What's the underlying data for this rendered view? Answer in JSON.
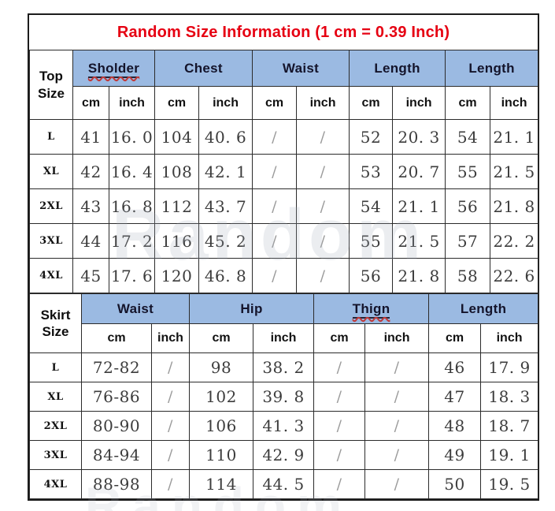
{
  "title": "Random Size Information (1 cm = 0.39 Inch)",
  "watermark": "Random",
  "units": {
    "cm": "cm",
    "inch": "inch"
  },
  "colors": {
    "title_red": "#e60012",
    "header_blue": "#9bbae2",
    "border_black": "#1c1c1c",
    "squiggle_red": "#c03a3a"
  },
  "top_table": {
    "corner_line1": "Top",
    "corner_line2": "Size",
    "groups": [
      {
        "label": "Sholder",
        "misspelled": true
      },
      {
        "label": "Chest",
        "misspelled": false
      },
      {
        "label": "Waist",
        "misspelled": false
      },
      {
        "label": "Length",
        "misspelled": false
      },
      {
        "label": "Length",
        "misspelled": false
      }
    ],
    "rows": [
      {
        "size": "L",
        "cells": [
          "41",
          "16. 0",
          "104",
          "40. 6",
          "/",
          "/",
          "52",
          "20. 3",
          "54",
          "21. 1"
        ]
      },
      {
        "size": "XL",
        "cells": [
          "42",
          "16. 4",
          "108",
          "42. 1",
          "/",
          "/",
          "53",
          "20. 7",
          "55",
          "21. 5"
        ]
      },
      {
        "size": "2XL",
        "cells": [
          "43",
          "16. 8",
          "112",
          "43. 7",
          "/",
          "/",
          "54",
          "21. 1",
          "56",
          "21. 8"
        ]
      },
      {
        "size": "3XL",
        "cells": [
          "44",
          "17. 2",
          "116",
          "45. 2",
          "/",
          "/",
          "55",
          "21. 5",
          "57",
          "22. 2"
        ]
      },
      {
        "size": "4XL",
        "cells": [
          "45",
          "17. 6",
          "120",
          "46. 8",
          "/",
          "/",
          "56",
          "21. 8",
          "58",
          "22. 6"
        ]
      }
    ]
  },
  "skirt_table": {
    "corner_line1": "Skirt",
    "corner_line2": "Size",
    "groups": [
      {
        "label": "Waist",
        "misspelled": false
      },
      {
        "label": "Hip",
        "misspelled": false
      },
      {
        "label": "Thign",
        "misspelled": true
      },
      {
        "label": "Length",
        "misspelled": false
      }
    ],
    "rows": [
      {
        "size": "L",
        "cells": [
          "72-82",
          "/",
          "98",
          "38. 2",
          "/",
          "/",
          "46",
          "17. 9"
        ]
      },
      {
        "size": "XL",
        "cells": [
          "76-86",
          "/",
          "102",
          "39. 8",
          "/",
          "/",
          "47",
          "18. 3"
        ]
      },
      {
        "size": "2XL",
        "cells": [
          "80-90",
          "/",
          "106",
          "41. 3",
          "/",
          "/",
          "48",
          "18. 7"
        ]
      },
      {
        "size": "3XL",
        "cells": [
          "84-94",
          "/",
          "110",
          "42. 9",
          "/",
          "/",
          "49",
          "19. 1"
        ]
      },
      {
        "size": "4XL",
        "cells": [
          "88-98",
          "/",
          "114",
          "44. 5",
          "/",
          "/",
          "50",
          "19. 5"
        ]
      }
    ]
  }
}
